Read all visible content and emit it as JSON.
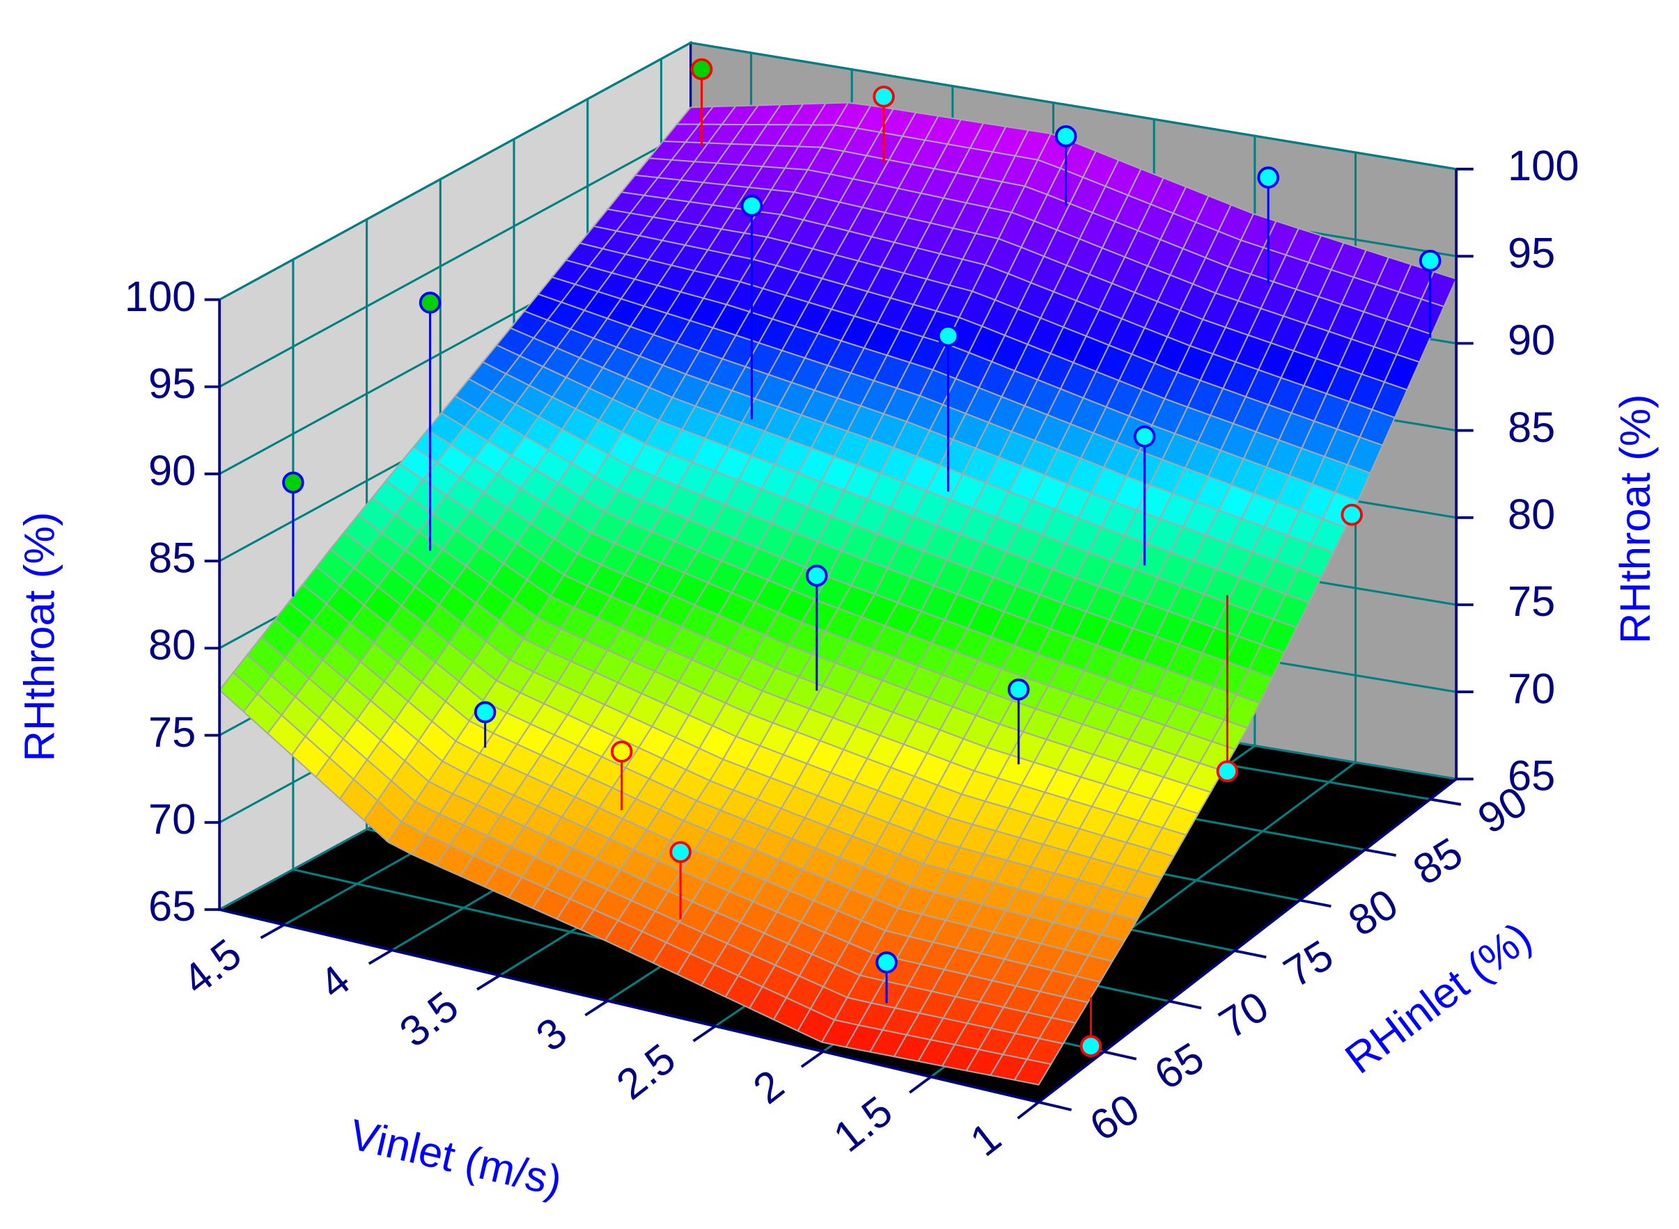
{
  "chart_data": {
    "type": "surface3d",
    "x_label": "Vinlet (m/s)",
    "y_label": "RHinlet (%)",
    "z_label": "RHthroat (%)",
    "xlim": [
      1,
      4.8
    ],
    "ylim": [
      60,
      92
    ],
    "zlim": [
      65,
      100
    ],
    "xticks": [
      1,
      1.5,
      2,
      2.5,
      3,
      3.5,
      4,
      4.5
    ],
    "yticks": [
      60,
      65,
      70,
      75,
      80,
      85,
      90
    ],
    "zticks": [
      65,
      70,
      75,
      80,
      85,
      90,
      95,
      100
    ],
    "colormap": [
      "#ff0000",
      "#ff8000",
      "#ffff00",
      "#00ff00",
      "#00ffff",
      "#0000ff",
      "#8000ff",
      "#ff00ff"
    ],
    "surface": {
      "x": [
        1,
        2,
        3,
        4,
        4.8
      ],
      "y": [
        60,
        68,
        76,
        84,
        92
      ],
      "z": [
        [
          66,
          65.5,
          68.4,
          71,
          77.6
        ],
        [
          71.4,
          72,
          74,
          77,
          82.5
        ],
        [
          77.2,
          79,
          81,
          83.5,
          87.1
        ],
        [
          84.8,
          87,
          89.5,
          91,
          91.7
        ],
        [
          93.7,
          95.5,
          98.2,
          98.1,
          96.3
        ]
      ]
    },
    "points": {
      "x": [
        4.6,
        3.7,
        2.8,
        1.8,
        1,
        4.5,
        3.65,
        2.7,
        1.75,
        1,
        4.8,
        3.9,
        3.26,
        2.8,
        1.84,
        1.35,
        2.79,
        1.83,
        1
      ],
      "y": [
        90,
        90,
        90,
        90,
        90,
        70,
        80,
        80,
        80,
        84,
        65,
        65,
        65,
        72,
        72,
        80,
        62,
        62,
        64
      ],
      "z": [
        99.8,
        100,
        99.5,
        99.1,
        95.9,
        96,
        98.8,
        93.5,
        89.9,
        84.8,
        87.2,
        76.5,
        76,
        83.7,
        79.6,
        71.6,
        73.1,
        69.5,
        65.9
      ],
      "fill": [
        "#00d000",
        "#00ffff",
        "#00ffff",
        "#00ffff",
        "#00ffff",
        "#00d000",
        "#00ffff",
        "#00ffff",
        "#00ffff",
        "#00ffff",
        "#00d000",
        "#00ffff",
        "#ffff00",
        "#00ffff",
        "#00ffff",
        "#00ffff",
        "#00ffff",
        "#00ffff",
        "#00ffff"
      ],
      "edge": [
        "#ff0000",
        "#ff0000",
        "#0000ff",
        "#0000ff",
        "#0000ff",
        "#0000ff",
        "#0000ff",
        "#0000ff",
        "#0000ff",
        "#ff0000",
        "#0000ff",
        "#0000ff",
        "#ff0000",
        "#0000ff",
        "#0000ff",
        "#ff0000",
        "#ff0000",
        "#0000ff",
        "#ff0000"
      ]
    }
  }
}
